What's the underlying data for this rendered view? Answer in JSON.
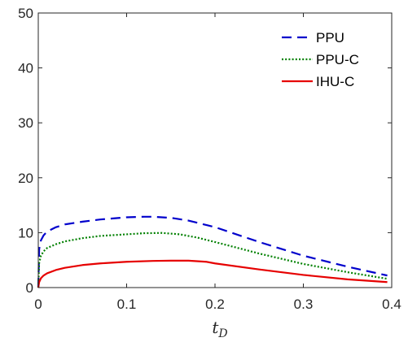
{
  "chart_data": {
    "type": "line",
    "xlabel": "t",
    "xlabel_subscript": "D",
    "ylabel": "",
    "xlim": [
      0,
      0.4
    ],
    "ylim": [
      0,
      50
    ],
    "xticks": [
      0,
      0.1,
      0.2,
      0.3,
      0.4
    ],
    "xtick_labels": [
      "0",
      "0.1",
      "0.2",
      "0.3",
      "0.4"
    ],
    "yticks": [
      0,
      10,
      20,
      30,
      40,
      50
    ],
    "ytick_labels": [
      "0",
      "10",
      "20",
      "30",
      "40",
      "50"
    ],
    "grid": false,
    "legend_position": "top-right",
    "series": [
      {
        "name": "PPU",
        "color": "#0000cc",
        "style": "dashed",
        "x": [
          0,
          0.001,
          0.003,
          0.006,
          0.01,
          0.02,
          0.03,
          0.05,
          0.07,
          0.1,
          0.12,
          0.13,
          0.15,
          0.17,
          0.2,
          0.25,
          0.3,
          0.35,
          0.395
        ],
        "y": [
          0,
          7.0,
          8.6,
          9.5,
          10.2,
          11.0,
          11.5,
          12.0,
          12.4,
          12.8,
          12.9,
          12.9,
          12.7,
          12.2,
          11.0,
          8.3,
          5.8,
          3.8,
          2.2
        ]
      },
      {
        "name": "PPU-C",
        "color": "#008000",
        "style": "dotted",
        "x": [
          0,
          0.001,
          0.003,
          0.006,
          0.01,
          0.02,
          0.03,
          0.05,
          0.07,
          0.1,
          0.12,
          0.14,
          0.16,
          0.18,
          0.2,
          0.25,
          0.3,
          0.35,
          0.395
        ],
        "y": [
          0,
          4.5,
          5.8,
          6.6,
          7.2,
          7.9,
          8.4,
          9.0,
          9.4,
          9.7,
          9.9,
          9.95,
          9.7,
          9.1,
          8.3,
          6.2,
          4.3,
          2.8,
          1.6
        ]
      },
      {
        "name": "IHU-C",
        "color": "#e60000",
        "style": "solid",
        "x": [
          0,
          0.001,
          0.003,
          0.006,
          0.01,
          0.02,
          0.03,
          0.05,
          0.07,
          0.1,
          0.13,
          0.15,
          0.17,
          0.19,
          0.2,
          0.25,
          0.3,
          0.35,
          0.395
        ],
        "y": [
          0,
          1.0,
          1.7,
          2.2,
          2.6,
          3.2,
          3.6,
          4.1,
          4.4,
          4.7,
          4.85,
          4.9,
          4.9,
          4.7,
          4.4,
          3.3,
          2.3,
          1.5,
          1.0
        ]
      }
    ]
  }
}
